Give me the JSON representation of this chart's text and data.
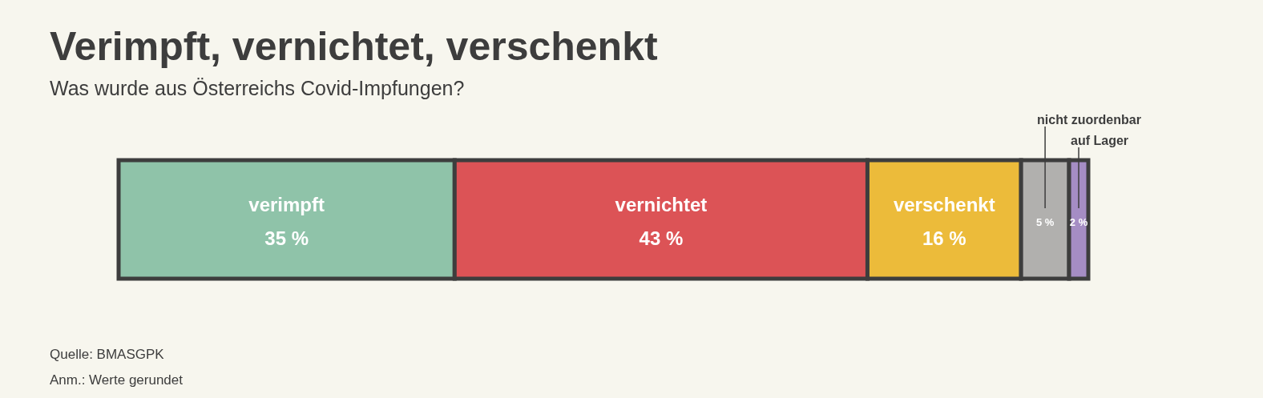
{
  "chart_data": {
    "type": "bar",
    "orientation": "horizontal",
    "stacked": true,
    "title": "Verimpft, vernichtet, verschenkt",
    "subtitle": "Was wurde aus Österreichs Covid-Impfungen?",
    "categories": [
      null
    ],
    "series": [
      {
        "name": "verimpft",
        "color": "#8fc3a9",
        "values": [
          35
        ],
        "value_labels": [
          "35 %"
        ]
      },
      {
        "name": "vernichtet",
        "color": "#dc5356",
        "values": [
          43
        ],
        "value_labels": [
          "43 %"
        ]
      },
      {
        "name": "verschenkt",
        "color": "#ecbb3a",
        "values": [
          16
        ],
        "value_labels": [
          "16 %"
        ]
      },
      {
        "name": "nicht zuordenbar",
        "color": "#b1b0ae",
        "values": [
          5
        ],
        "value_labels": [
          "5 %"
        ]
      },
      {
        "name": "auf Lager",
        "color": "#a58dc4",
        "values": [
          2
        ],
        "value_labels": [
          "2 %"
        ]
      }
    ],
    "annotations": [
      "Quelle: BMASGPK",
      "Anm.: Werte gerundet"
    ],
    "legend": false,
    "grid": false,
    "tick_labels": false
  }
}
